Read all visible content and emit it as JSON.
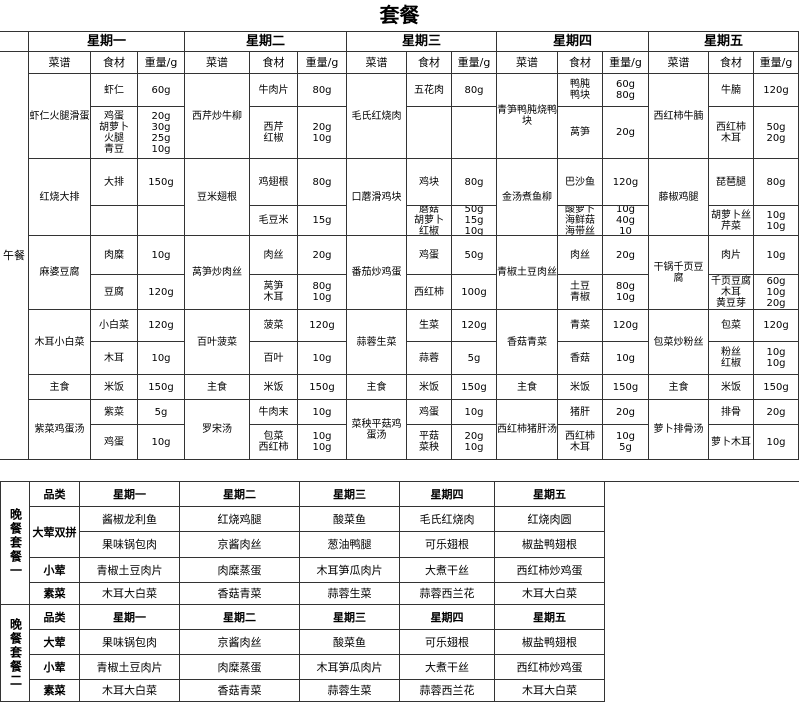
{
  "title": "套餐",
  "lunch_label": "午餐",
  "days": [
    "星期一",
    "星期二",
    "星期三",
    "星期四",
    "星期五"
  ],
  "column_headers": [
    "菜谱",
    "食材",
    "重量/g"
  ],
  "lunch": [
    {
      "dishes": [
        {
          "name": "虾仁火腿滑蛋",
          "items": [
            [
              "虾仁",
              "60g"
            ],
            [
              "鸡蛋\n胡萝卜\n火腿\n青豆",
              "20g\n30g\n25g\n10g"
            ]
          ]
        },
        {
          "name": "红烧大排",
          "items": [
            [
              "大排",
              "150g"
            ]
          ]
        },
        {
          "name": "麻婆豆腐",
          "items": [
            [
              "肉糜",
              "10g"
            ],
            [
              "豆腐",
              "120g"
            ]
          ]
        },
        {
          "name": "木耳小白菜",
          "items": [
            [
              "小白菜",
              "120g"
            ],
            [
              "木耳",
              "10g"
            ]
          ]
        }
      ],
      "staple": [
        "主食",
        "米饭",
        "150g"
      ],
      "soup": {
        "name": "紫菜鸡蛋汤",
        "items": [
          [
            "紫菜",
            "5g"
          ],
          [
            "鸡蛋",
            "10g"
          ]
        ]
      }
    },
    {
      "dishes": [
        {
          "name": "西芹炒牛柳",
          "items": [
            [
              "牛肉片",
              "80g"
            ],
            [
              "西芹\n红椒",
              "20g\n10g"
            ]
          ]
        },
        {
          "name": "豆米翅根",
          "items": [
            [
              "鸡翅根",
              "80g"
            ],
            [
              "毛豆米",
              "15g"
            ]
          ]
        },
        {
          "name": "莴笋炒肉丝",
          "items": [
            [
              "肉丝",
              "20g"
            ],
            [
              "莴笋\n木耳",
              "80g\n10g"
            ]
          ]
        },
        {
          "name": "百叶菠菜",
          "items": [
            [
              "菠菜",
              "120g"
            ],
            [
              "百叶",
              "10g"
            ]
          ]
        }
      ],
      "staple": [
        "主食",
        "米饭",
        "150g"
      ],
      "soup": {
        "name": "罗宋汤",
        "items": [
          [
            "牛肉末",
            "10g"
          ],
          [
            "包菜\n西红柿",
            "10g\n10g"
          ]
        ]
      }
    },
    {
      "dishes": [
        {
          "name": "毛氏红烧肉",
          "items": [
            [
              "五花肉",
              "80g"
            ]
          ]
        },
        {
          "name": "口蘑滑鸡块",
          "items": [
            [
              "鸡块",
              "80g"
            ],
            [
              "蘑菇\n胡萝卜\n红椒",
              "50g\n15g\n10g"
            ]
          ]
        },
        {
          "name": "番茄炒鸡蛋",
          "items": [
            [
              "鸡蛋",
              "50g"
            ],
            [
              "西红柿",
              "100g"
            ]
          ]
        },
        {
          "name": "蒜蓉生菜",
          "items": [
            [
              "生菜",
              "120g"
            ],
            [
              "蒜蓉",
              "5g"
            ]
          ]
        }
      ],
      "staple": [
        "主食",
        "米饭",
        "150g"
      ],
      "soup": {
        "name": "菜秧平菇鸡蛋汤",
        "items": [
          [
            "鸡蛋",
            "10g"
          ],
          [
            "平菇\n菜秧",
            "20g\n10g"
          ]
        ]
      }
    },
    {
      "dishes": [
        {
          "name": "青笋鸭肫烧鸭块",
          "items": [
            [
              "鸭肫\n鸭块",
              "60g\n80g"
            ],
            [
              "莴笋",
              "20g"
            ]
          ]
        },
        {
          "name": "金汤煮鱼柳",
          "items": [
            [
              "巴沙鱼",
              "120g"
            ],
            [
              "酸萝卜\n海鲜菇\n海带丝",
              "10g\n40g\n10"
            ]
          ]
        },
        {
          "name": "青椒土豆肉丝",
          "items": [
            [
              "肉丝",
              "20g"
            ],
            [
              "土豆\n青椒",
              "80g\n10g"
            ]
          ]
        },
        {
          "name": "香菇青菜",
          "items": [
            [
              "青菜",
              "120g"
            ],
            [
              "香菇",
              "10g"
            ]
          ]
        }
      ],
      "staple": [
        "主食",
        "米饭",
        "150g"
      ],
      "soup": {
        "name": "西红柿猪肝汤",
        "items": [
          [
            "猪肝",
            "20g"
          ],
          [
            "西红柿\n木耳",
            "10g\n5g"
          ]
        ]
      }
    },
    {
      "dishes": [
        {
          "name": "西红柿牛腩",
          "items": [
            [
              "牛腩",
              "120g"
            ],
            [
              "西红柿\n木耳",
              "50g\n20g"
            ]
          ]
        },
        {
          "name": "藤椒鸡腿",
          "items": [
            [
              "琵琶腿",
              "80g"
            ],
            [
              "胡萝卜丝\n芹菜",
              "10g\n10g"
            ]
          ]
        },
        {
          "name": "干锅千页豆腐",
          "items": [
            [
              "肉片",
              "10g"
            ],
            [
              "千页豆腐\n木耳\n黄豆芽",
              "60g\n10g\n20g"
            ]
          ]
        },
        {
          "name": "包菜炒粉丝",
          "items": [
            [
              "包菜",
              "120g"
            ],
            [
              "粉丝\n红椒",
              "10g\n10g"
            ]
          ]
        }
      ],
      "staple": [
        "主食",
        "米饭",
        "150g"
      ],
      "soup": {
        "name": "萝卜排骨汤",
        "items": [
          [
            "排骨",
            "20g"
          ],
          [
            "萝卜木耳",
            "10g"
          ]
        ]
      }
    }
  ],
  "dinner": [
    {
      "label": "晚餐套餐一",
      "header": [
        "品类",
        "星期一",
        "星期二",
        "星期三",
        "星期四",
        "星期五"
      ],
      "rows": [
        {
          "category": "大荤双拼",
          "lines": [
            [
              "酱椒龙利鱼",
              "红烧鸡腿",
              "酸菜鱼",
              "毛氏红烧肉",
              "红烧肉圆"
            ],
            [
              "果味锅包肉",
              "京酱肉丝",
              "葱油鸭腿",
              "可乐翅根",
              "椒盐鸭翅根"
            ]
          ]
        },
        {
          "category": "小荤",
          "lines": [
            [
              "青椒土豆肉片",
              "肉糜蒸蛋",
              "木耳笋瓜肉片",
              "大煮干丝",
              "西红柿炒鸡蛋"
            ]
          ]
        },
        {
          "category": "素菜",
          "lines": [
            [
              "木耳大白菜",
              "香菇青菜",
              "蒜蓉生菜",
              "蒜蓉西兰花",
              "木耳大白菜"
            ]
          ]
        }
      ]
    },
    {
      "label": "晚餐套餐二",
      "header": [
        "品类",
        "星期一",
        "星期二",
        "星期三",
        "星期四",
        "星期五"
      ],
      "rows": [
        {
          "category": "大荤",
          "lines": [
            [
              "果味锅包肉",
              "京酱肉丝",
              "酸菜鱼",
              "可乐翅根",
              "椒盐鸭翅根"
            ]
          ]
        },
        {
          "category": "小荤",
          "lines": [
            [
              "青椒土豆肉片",
              "肉糜蒸蛋",
              "木耳笋瓜肉片",
              "大煮干丝",
              "西红柿炒鸡蛋"
            ]
          ]
        },
        {
          "category": "素菜",
          "lines": [
            [
              "木耳大白菜",
              "香菇青菜",
              "蒜蓉生菜",
              "蒜蓉西兰花",
              "木耳大白菜"
            ]
          ]
        }
      ]
    }
  ]
}
